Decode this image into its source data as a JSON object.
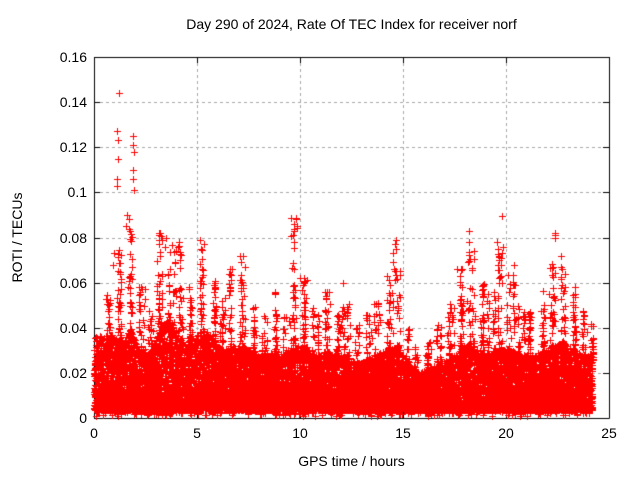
{
  "page": {
    "background": "#ffffff",
    "text_color": "#000000"
  },
  "chart_data": {
    "type": "scatter",
    "title": "Day 290 of 2024, Rate Of TEC Index for receiver norf",
    "xlabel": "GPS time / hours",
    "ylabel": "ROTI / TECUs",
    "xlim": [
      0,
      25
    ],
    "ylim": [
      0,
      0.16
    ],
    "xticks": [
      {
        "v": 0,
        "label": "0"
      },
      {
        "v": 5,
        "label": "5"
      },
      {
        "v": 10,
        "label": "10"
      },
      {
        "v": 15,
        "label": "15"
      },
      {
        "v": 20,
        "label": "20"
      },
      {
        "v": 25,
        "label": "25"
      }
    ],
    "yticks": [
      {
        "v": 0,
        "label": "0"
      },
      {
        "v": 0.02,
        "label": "0.02"
      },
      {
        "v": 0.04,
        "label": "0.04"
      },
      {
        "v": 0.06,
        "label": "0.06"
      },
      {
        "v": 0.08,
        "label": "0.08"
      },
      {
        "v": 0.1,
        "label": "0.1"
      },
      {
        "v": 0.12,
        "label": "0.12"
      },
      {
        "v": 0.14,
        "label": "0.14"
      },
      {
        "v": 0.16,
        "label": "0.16"
      }
    ],
    "grid": {
      "show": true,
      "style": "dashed",
      "color": "#a8a8a8"
    },
    "marker": {
      "shape": "plus",
      "size": 7,
      "color": "#ff0000"
    },
    "axis_color": "#000000",
    "x_data_range": [
      0,
      24.2
    ],
    "bin_width_hours": 0.5,
    "band_top_per_bin": [
      0.036,
      0.038,
      0.034,
      0.04,
      0.03,
      0.028,
      0.042,
      0.044,
      0.034,
      0.032,
      0.04,
      0.036,
      0.03,
      0.032,
      0.032,
      0.03,
      0.028,
      0.03,
      0.028,
      0.032,
      0.032,
      0.028,
      0.03,
      0.028,
      0.028,
      0.024,
      0.026,
      0.028,
      0.03,
      0.032,
      0.024,
      0.02,
      0.022,
      0.024,
      0.026,
      0.03,
      0.034,
      0.03,
      0.028,
      0.032,
      0.03,
      0.028,
      0.028,
      0.03,
      0.032,
      0.034,
      0.03,
      0.028,
      0.03
    ],
    "spike_max_per_bin": [
      0.043,
      0.055,
      0.075,
      0.09,
      0.06,
      0.05,
      0.082,
      0.08,
      0.078,
      0.06,
      0.079,
      0.062,
      0.055,
      0.066,
      0.072,
      0.05,
      0.048,
      0.056,
      0.048,
      0.089,
      0.062,
      0.05,
      0.056,
      0.05,
      0.052,
      0.042,
      0.046,
      0.052,
      0.064,
      0.079,
      0.04,
      0.032,
      0.035,
      0.042,
      0.052,
      0.066,
      0.076,
      0.06,
      0.056,
      0.078,
      0.068,
      0.05,
      0.048,
      0.06,
      0.07,
      0.072,
      0.06,
      0.048,
      0.042
    ],
    "baseline_min": 0.003,
    "notable_points": [
      [
        1.21,
        0.144
      ],
      [
        1.13,
        0.127
      ],
      [
        1.15,
        0.123
      ],
      [
        1.16,
        0.115
      ],
      [
        1.14,
        0.106
      ],
      [
        1.12,
        0.103
      ],
      [
        1.88,
        0.125
      ],
      [
        1.9,
        0.121
      ],
      [
        1.92,
        0.118
      ],
      [
        1.89,
        0.11
      ],
      [
        1.91,
        0.106
      ],
      [
        1.93,
        0.101
      ],
      [
        1.62,
        0.09
      ],
      [
        1.55,
        0.085
      ],
      [
        0.95,
        0.073
      ],
      [
        0.9,
        0.068
      ],
      [
        3.2,
        0.082
      ],
      [
        3.3,
        0.079
      ],
      [
        3.5,
        0.08
      ],
      [
        3.45,
        0.076
      ],
      [
        5.15,
        0.079
      ],
      [
        5.2,
        0.075
      ],
      [
        6.7,
        0.066
      ],
      [
        7.1,
        0.072
      ],
      [
        9.83,
        0.0885
      ],
      [
        9.84,
        0.085
      ],
      [
        9.86,
        0.084
      ],
      [
        10.0,
        0.062
      ],
      [
        11.2,
        0.056
      ],
      [
        12.1,
        0.06
      ],
      [
        14.66,
        0.079
      ],
      [
        14.68,
        0.075
      ],
      [
        14.63,
        0.065
      ],
      [
        17.6,
        0.066
      ],
      [
        18.18,
        0.083
      ],
      [
        18.2,
        0.078
      ],
      [
        19.8,
        0.0895
      ],
      [
        19.55,
        0.078
      ],
      [
        19.6,
        0.075
      ],
      [
        20.5,
        0.044
      ],
      [
        22.38,
        0.082
      ],
      [
        22.4,
        0.081
      ],
      [
        22.36,
        0.08
      ],
      [
        22.1,
        0.055
      ],
      [
        23.35,
        0.038
      ],
      [
        23.93,
        0.038
      ]
    ]
  }
}
